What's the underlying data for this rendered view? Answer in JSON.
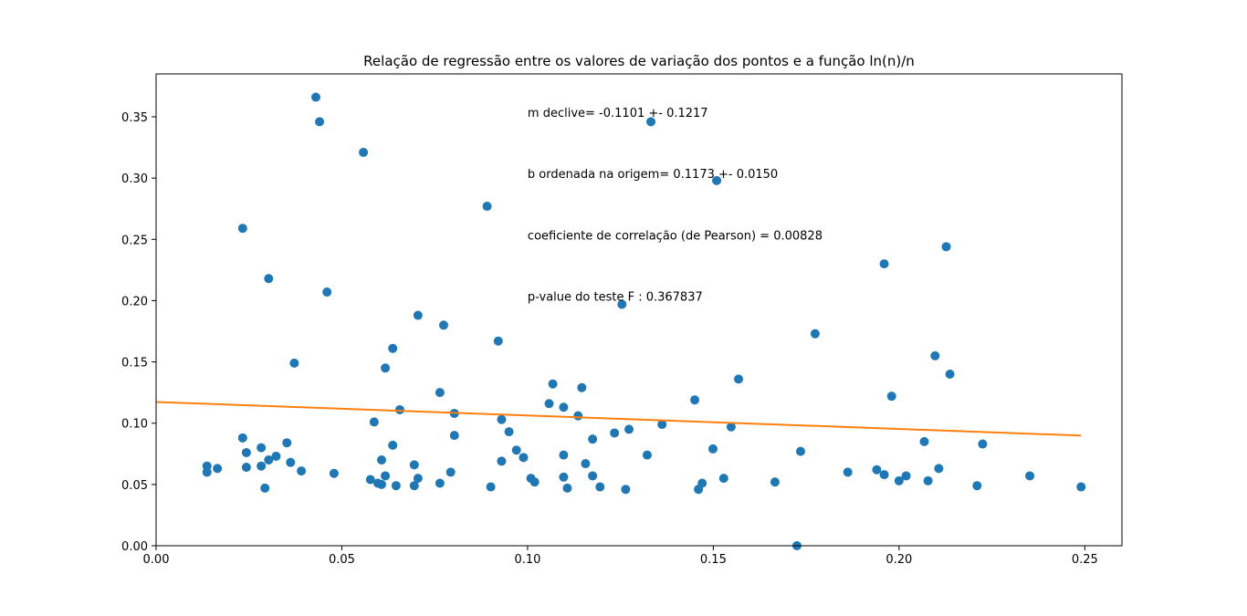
{
  "chart_data": {
    "type": "scatter",
    "title": "Relação de regressão entre os valores de variação dos pontos e a função ln(n)/n",
    "xlabel": "",
    "ylabel": "",
    "xlim": [
      0.0,
      0.26
    ],
    "ylim": [
      0.0,
      0.385
    ],
    "xticks": [
      0.0,
      0.05,
      0.1,
      0.15,
      0.2,
      0.25
    ],
    "xtick_labels": [
      "0.00",
      "0.05",
      "0.10",
      "0.15",
      "0.20",
      "0.25"
    ],
    "yticks": [
      0.0,
      0.05,
      0.1,
      0.15,
      0.2,
      0.25,
      0.3,
      0.35
    ],
    "ytick_labels": [
      "0.00",
      "0.05",
      "0.10",
      "0.15",
      "0.20",
      "0.25",
      "0.30",
      "0.35"
    ],
    "grid": false,
    "colors": {
      "points": "#1f77b4",
      "line": "#ff7f0e"
    },
    "annotations": [
      "m declive= -0.1101 +- 0.1217",
      "b ordenada na origem= 0.1173 +- 0.0150",
      "coeficiente de correlação (de Pearson) = 0.00828",
      "p-value do teste F : 0.367837"
    ],
    "annotation_positions": [
      {
        "x": 0.1,
        "y": 0.35
      },
      {
        "x": 0.1,
        "y": 0.3
      },
      {
        "x": 0.1,
        "y": 0.25
      },
      {
        "x": 0.1,
        "y": 0.2
      }
    ],
    "regression_line": {
      "x": [
        0.0,
        0.249
      ],
      "y": [
        0.1173,
        0.0899
      ]
    },
    "points": {
      "x": [
        0.0137,
        0.0137,
        0.0165,
        0.0233,
        0.0233,
        0.0243,
        0.0243,
        0.0283,
        0.0283,
        0.0293,
        0.0303,
        0.0303,
        0.0323,
        0.0352,
        0.0362,
        0.0372,
        0.0391,
        0.043,
        0.044,
        0.046,
        0.0479,
        0.0558,
        0.0577,
        0.0587,
        0.0597,
        0.0607,
        0.0607,
        0.0617,
        0.0617,
        0.0637,
        0.0637,
        0.0646,
        0.0656,
        0.0695,
        0.0695,
        0.0705,
        0.0705,
        0.0764,
        0.0764,
        0.0774,
        0.0793,
        0.0803,
        0.0803,
        0.0891,
        0.0901,
        0.0921,
        0.093,
        0.093,
        0.095,
        0.097,
        0.0989,
        0.1009,
        0.1019,
        0.1058,
        0.1068,
        0.1097,
        0.1097,
        0.1097,
        0.1107,
        0.1136,
        0.1146,
        0.1156,
        0.1175,
        0.1175,
        0.1195,
        0.1234,
        0.1254,
        0.1264,
        0.1273,
        0.1322,
        0.1332,
        0.1362,
        0.145,
        0.146,
        0.147,
        0.1499,
        0.1509,
        0.1528,
        0.1548,
        0.1568,
        0.1666,
        0.1725,
        0.1735,
        0.1774,
        0.1862,
        0.194,
        0.196,
        0.196,
        0.198,
        0.2,
        0.2019,
        0.2068,
        0.2078,
        0.2097,
        0.2107,
        0.2127,
        0.2137,
        0.221,
        0.2225,
        0.2352,
        0.249
      ],
      "y": [
        0.06,
        0.065,
        0.063,
        0.259,
        0.088,
        0.076,
        0.064,
        0.08,
        0.065,
        0.047,
        0.218,
        0.07,
        0.073,
        0.084,
        0.068,
        0.149,
        0.061,
        0.366,
        0.346,
        0.207,
        0.059,
        0.321,
        0.054,
        0.101,
        0.051,
        0.05,
        0.07,
        0.057,
        0.145,
        0.161,
        0.082,
        0.049,
        0.111,
        0.066,
        0.049,
        0.188,
        0.055,
        0.125,
        0.051,
        0.18,
        0.06,
        0.108,
        0.09,
        0.277,
        0.048,
        0.167,
        0.103,
        0.069,
        0.093,
        0.078,
        0.072,
        0.055,
        0.052,
        0.116,
        0.132,
        0.113,
        0.074,
        0.056,
        0.047,
        0.106,
        0.129,
        0.067,
        0.087,
        0.057,
        0.048,
        0.092,
        0.197,
        0.046,
        0.095,
        0.074,
        0.346,
        0.099,
        0.119,
        0.046,
        0.051,
        0.079,
        0.298,
        0.055,
        0.097,
        0.136,
        0.052,
        0.0,
        0.077,
        0.173,
        0.06,
        0.062,
        0.23,
        0.058,
        0.122,
        0.053,
        0.057,
        0.085,
        0.053,
        0.155,
        0.063,
        0.244,
        0.14,
        0.049,
        0.083,
        0.057,
        0.048
      ]
    }
  }
}
